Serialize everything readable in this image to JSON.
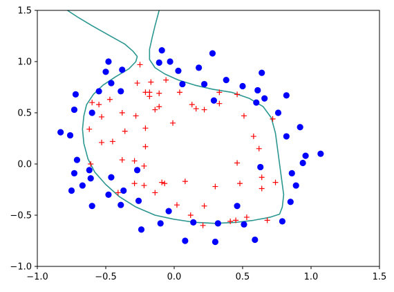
{
  "chart_data": {
    "type": "scatter",
    "title": "",
    "xlabel": "",
    "ylabel": "",
    "xlim": [
      -1.0,
      1.5
    ],
    "ylim": [
      -1.0,
      1.5
    ],
    "x_ticks": [
      {
        "value": -1.0,
        "label": "−1.0"
      },
      {
        "value": -0.5,
        "label": "−0.5"
      },
      {
        "value": 0.0,
        "label": "0.0"
      },
      {
        "value": 0.5,
        "label": "0.5"
      },
      {
        "value": 1.0,
        "label": "1.0"
      },
      {
        "value": 1.5,
        "label": "1.5"
      }
    ],
    "y_ticks": [
      {
        "value": -1.0,
        "label": "−1.0"
      },
      {
        "value": -0.5,
        "label": "−0.5"
      },
      {
        "value": 0.0,
        "label": "0.0"
      },
      {
        "value": 0.5,
        "label": "0.5"
      },
      {
        "value": 1.0,
        "label": "1.0"
      },
      {
        "value": 1.5,
        "label": "1.5"
      }
    ],
    "grid": false,
    "series": [
      {
        "marker": "circle",
        "color": "#0000ff",
        "points": [
          [
            -0.83,
            0.31
          ],
          [
            -0.76,
            0.28
          ],
          [
            -0.72,
            0.68
          ],
          [
            -0.73,
            0.53
          ],
          [
            -0.71,
            0.04
          ],
          [
            -0.73,
            -0.09
          ],
          [
            -0.75,
            -0.26
          ],
          [
            -0.67,
            -0.21
          ],
          [
            -0.62,
            -0.06
          ],
          [
            -0.61,
            -0.14
          ],
          [
            -0.6,
            0.5
          ],
          [
            -0.6,
            -0.41
          ],
          [
            -0.55,
            0.71
          ],
          [
            -0.5,
            0.9
          ],
          [
            -0.48,
            1.0
          ],
          [
            -0.46,
            0.79
          ],
          [
            -0.48,
            -0.3
          ],
          [
            -0.46,
            -0.13
          ],
          [
            -0.38,
            0.92
          ],
          [
            -0.39,
            0.71
          ],
          [
            -0.37,
            -0.26
          ],
          [
            -0.39,
            -0.4
          ],
          [
            -0.27,
            -0.06
          ],
          [
            -0.26,
            -0.36
          ],
          [
            -0.24,
            -0.64
          ],
          [
            -0.11,
            0.99
          ],
          [
            -0.09,
            1.11
          ],
          [
            -0.03,
            1.0
          ],
          [
            -0.04,
            -0.46
          ],
          [
            -0.1,
            -0.58
          ],
          [
            0.03,
            0.91
          ],
          [
            0.06,
            0.78
          ],
          [
            0.08,
            -0.75
          ],
          [
            0.14,
            -0.57
          ],
          [
            0.18,
            0.94
          ],
          [
            0.22,
            0.78
          ],
          [
            0.28,
            1.08
          ],
          [
            0.29,
            0.62
          ],
          [
            0.3,
            -0.76
          ],
          [
            0.32,
            -0.58
          ],
          [
            0.38,
            0.82
          ],
          [
            0.46,
            -0.41
          ],
          [
            0.5,
            0.76
          ],
          [
            0.51,
            -0.59
          ],
          [
            0.6,
            0.6
          ],
          [
            0.61,
            0.72
          ],
          [
            0.59,
            -0.74
          ],
          [
            0.64,
            0.89
          ],
          [
            0.66,
            0.64
          ],
          [
            0.63,
            -0.03
          ],
          [
            0.76,
            0.5
          ],
          [
            0.79,
            -0.56
          ],
          [
            0.82,
            0.67
          ],
          [
            0.82,
            0.27
          ],
          [
            0.85,
            -0.37
          ],
          [
            0.86,
            -0.09
          ],
          [
            0.89,
            -0.21
          ],
          [
            0.92,
            0.36
          ],
          [
            0.94,
            0.01
          ],
          [
            0.96,
            0.08
          ],
          [
            1.07,
            0.1
          ]
        ]
      },
      {
        "marker": "plus",
        "color": "#ff0000",
        "points": [
          [
            -0.6,
            0.6
          ],
          [
            -0.62,
            0.34
          ],
          [
            -0.55,
            0.58
          ],
          [
            -0.53,
            0.46
          ],
          [
            -0.53,
            0.21
          ],
          [
            -0.45,
            0.22
          ],
          [
            -0.47,
            0.63
          ],
          [
            -0.38,
            0.5
          ],
          [
            -0.36,
            0.32
          ],
          [
            -0.38,
            0.04
          ],
          [
            -0.28,
            0.47
          ],
          [
            -0.27,
            0.79
          ],
          [
            -0.25,
            0.97
          ],
          [
            -0.21,
            0.7
          ],
          [
            -0.18,
            0.7
          ],
          [
            -0.18,
            0.66
          ],
          [
            -0.17,
            0.8
          ],
          [
            -0.14,
            0.53
          ],
          [
            -0.11,
            0.56
          ],
          [
            -0.11,
            0.69
          ],
          [
            -0.06,
            0.82
          ],
          [
            -0.21,
            0.35
          ],
          [
            -0.21,
            0.17
          ],
          [
            -0.29,
            0.03
          ],
          [
            -0.22,
            -0.02
          ],
          [
            -0.29,
            -0.19
          ],
          [
            -0.22,
            -0.21
          ],
          [
            -0.14,
            -0.28
          ],
          [
            -0.07,
            -0.19
          ],
          [
            -0.01,
            0.4
          ],
          [
            0.04,
            0.7
          ],
          [
            0.13,
            0.58
          ],
          [
            0.16,
            0.54
          ],
          [
            0.22,
            0.53
          ],
          [
            0.08,
            -0.17
          ],
          [
            0.02,
            -0.4
          ],
          [
            0.12,
            -0.5
          ],
          [
            0.22,
            -0.41
          ],
          [
            0.21,
            -0.6
          ],
          [
            0.3,
            -0.22
          ],
          [
            0.41,
            -0.56
          ],
          [
            0.45,
            -0.55
          ],
          [
            0.46,
            0.68
          ],
          [
            0.51,
            0.47
          ],
          [
            0.58,
            0.27
          ],
          [
            0.62,
            0.15
          ],
          [
            0.64,
            -0.13
          ],
          [
            0.64,
            -0.24
          ],
          [
            0.72,
            0.44
          ],
          [
            0.74,
            -0.18
          ],
          [
            0.68,
            -0.55
          ],
          [
            0.53,
            -0.52
          ],
          [
            0.48,
            -0.19
          ],
          [
            0.46,
            0.01
          ],
          [
            0.33,
            0.7
          ],
          [
            0.33,
            0.59
          ],
          [
            -0.09,
            -0.18
          ],
          [
            -0.41,
            -0.28
          ],
          [
            -0.61,
            0.0
          ]
        ]
      },
      {
        "marker": "line",
        "color": "#2a9690",
        "segments": [
          [
            [
              -0.78,
              1.5
            ],
            [
              -0.7,
              1.43
            ],
            [
              -0.6,
              1.35
            ],
            [
              -0.48,
              1.26
            ],
            [
              -0.36,
              1.17
            ],
            [
              -0.3,
              1.1
            ],
            [
              -0.27,
              1.05
            ],
            [
              -0.28,
              1.0
            ],
            [
              -0.33,
              0.93
            ],
            [
              -0.43,
              0.85
            ],
            [
              -0.52,
              0.77
            ],
            [
              -0.59,
              0.68
            ],
            [
              -0.64,
              0.58
            ],
            [
              -0.66,
              0.47
            ],
            [
              -0.67,
              0.34
            ],
            [
              -0.66,
              0.2
            ],
            [
              -0.63,
              0.05
            ],
            [
              -0.58,
              -0.08
            ],
            [
              -0.5,
              -0.2
            ],
            [
              -0.4,
              -0.32
            ],
            [
              -0.28,
              -0.42
            ],
            [
              -0.14,
              -0.5
            ],
            [
              0.0,
              -0.54
            ],
            [
              0.15,
              -0.57
            ],
            [
              0.3,
              -0.58
            ],
            [
              0.45,
              -0.57
            ],
            [
              0.58,
              -0.55
            ],
            [
              0.7,
              -0.52
            ],
            [
              0.77,
              -0.49
            ],
            [
              0.79,
              -0.42
            ],
            [
              0.8,
              -0.3
            ],
            [
              0.78,
              -0.1
            ],
            [
              0.76,
              0.1
            ],
            [
              0.74,
              0.3
            ],
            [
              0.71,
              0.45
            ],
            [
              0.65,
              0.56
            ],
            [
              0.55,
              0.64
            ],
            [
              0.42,
              0.7
            ],
            [
              0.28,
              0.73
            ],
            [
              0.15,
              0.77
            ],
            [
              0.03,
              0.82
            ],
            [
              -0.07,
              0.88
            ],
            [
              -0.14,
              0.94
            ],
            [
              -0.18,
              1.02
            ],
            [
              -0.18,
              1.12
            ],
            [
              -0.16,
              1.24
            ],
            [
              -0.14,
              1.35
            ],
            [
              -0.12,
              1.45
            ],
            [
              -0.11,
              1.5
            ]
          ]
        ]
      }
    ]
  }
}
